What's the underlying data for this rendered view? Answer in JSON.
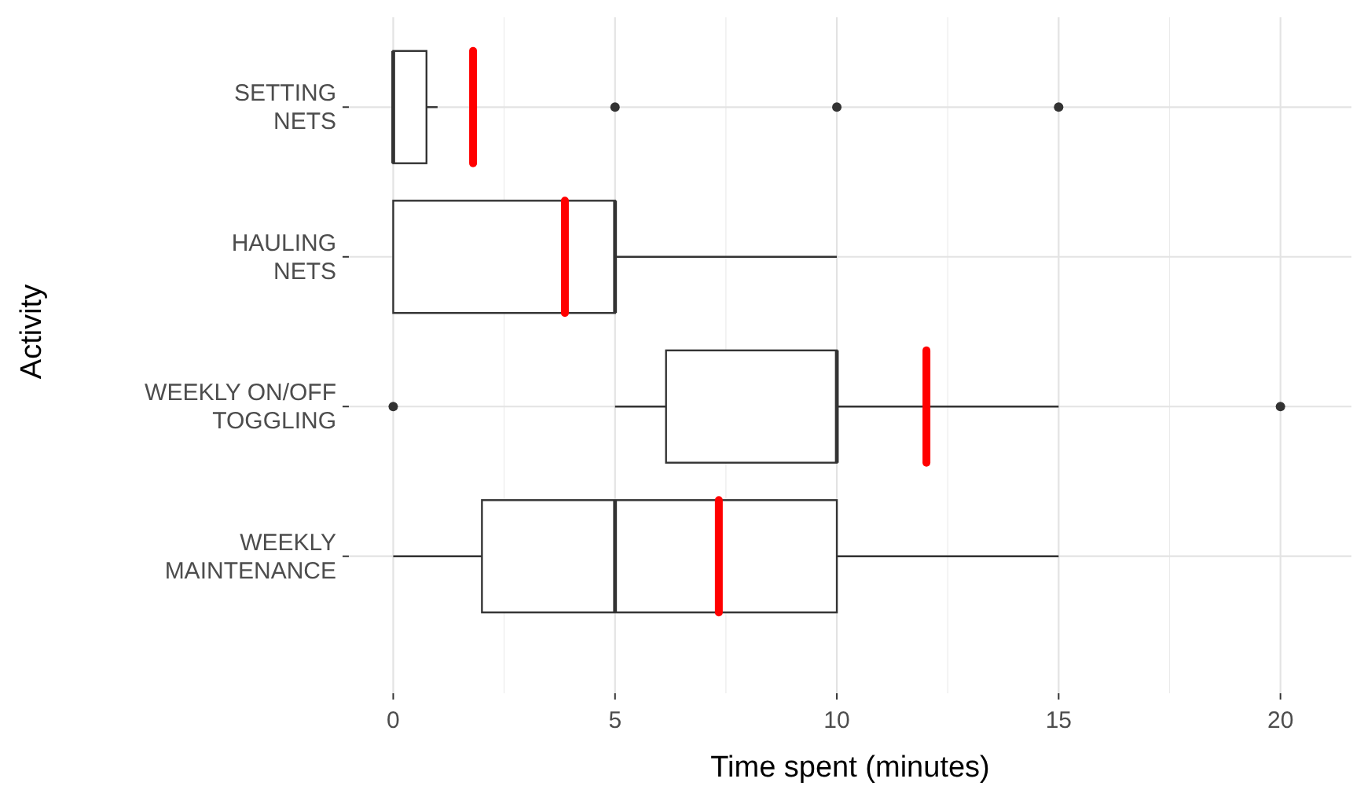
{
  "chart_data": {
    "type": "box",
    "orientation": "horizontal",
    "xlabel": "Time spent (minutes)",
    "ylabel": "Activity",
    "categories": [
      "SETTING\nNETS",
      "HAULING\nNETS",
      "WEEKLY ON/OFF\nTOGGLING",
      "WEEKLY\nMAINTENANCE"
    ],
    "boxes": [
      {
        "low": 0,
        "q1": 0,
        "median": 0,
        "q3": 0.75,
        "high": 1,
        "mean": 1.8,
        "outliers": [
          5,
          10,
          15
        ]
      },
      {
        "low": 0,
        "q1": 0,
        "median": 5,
        "q3": 5,
        "high": 10,
        "mean": 3.87
      },
      {
        "low": 5,
        "q1": 6.15,
        "median": 10,
        "q3": 10,
        "high": 15,
        "mean": 12.02,
        "outliers": [
          0,
          20
        ]
      },
      {
        "low": 0,
        "q1": 2,
        "median": 5,
        "q3": 10,
        "high": 15,
        "mean": 7.34
      }
    ],
    "xlim": [
      -1,
      21.6
    ],
    "xticks": [
      0,
      5,
      10,
      15,
      20
    ],
    "grid": true
  }
}
